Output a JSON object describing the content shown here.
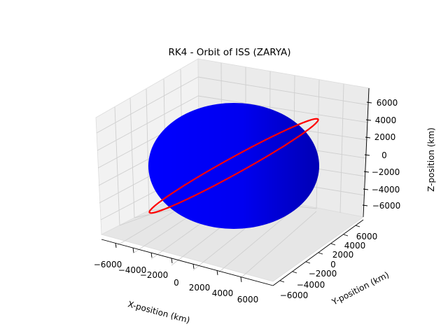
{
  "chart_data": {
    "type": "3d-line",
    "title": "RK4 - Orbit of ISS (ZARYA)",
    "xlabel": "X-position (km)",
    "ylabel": "Y-position (km)",
    "zlabel": "Z-position (km)",
    "xlim": [
      -7000,
      7000
    ],
    "ylim": [
      -7000,
      7000
    ],
    "zlim": [
      -7000,
      7000
    ],
    "x_ticks": [
      -6000,
      -4000,
      -2000,
      0,
      2000,
      4000,
      6000
    ],
    "y_ticks": [
      -6000,
      -4000,
      -2000,
      0,
      2000,
      4000,
      6000
    ],
    "z_ticks": [
      -6000,
      -4000,
      -2000,
      0,
      2000,
      4000,
      6000
    ],
    "x_tick_labels": [
      "−6000",
      "−4000",
      "−2000",
      "0",
      "2000",
      "4000",
      "6000"
    ],
    "y_tick_labels": [
      "−6000",
      "−4000",
      "−2000",
      "0",
      "2000",
      "4000",
      "6000"
    ],
    "z_tick_labels": [
      "−6000",
      "−4000",
      "−2000",
      "0",
      "2000",
      "4000",
      "6000"
    ],
    "grid": true,
    "sphere": {
      "radius_km": 6371,
      "color": "#0000ff"
    },
    "series": [
      {
        "orbit_radius_km": 6780,
        "inclination_deg": 51.6,
        "color": "#ff0000"
      }
    ]
  }
}
